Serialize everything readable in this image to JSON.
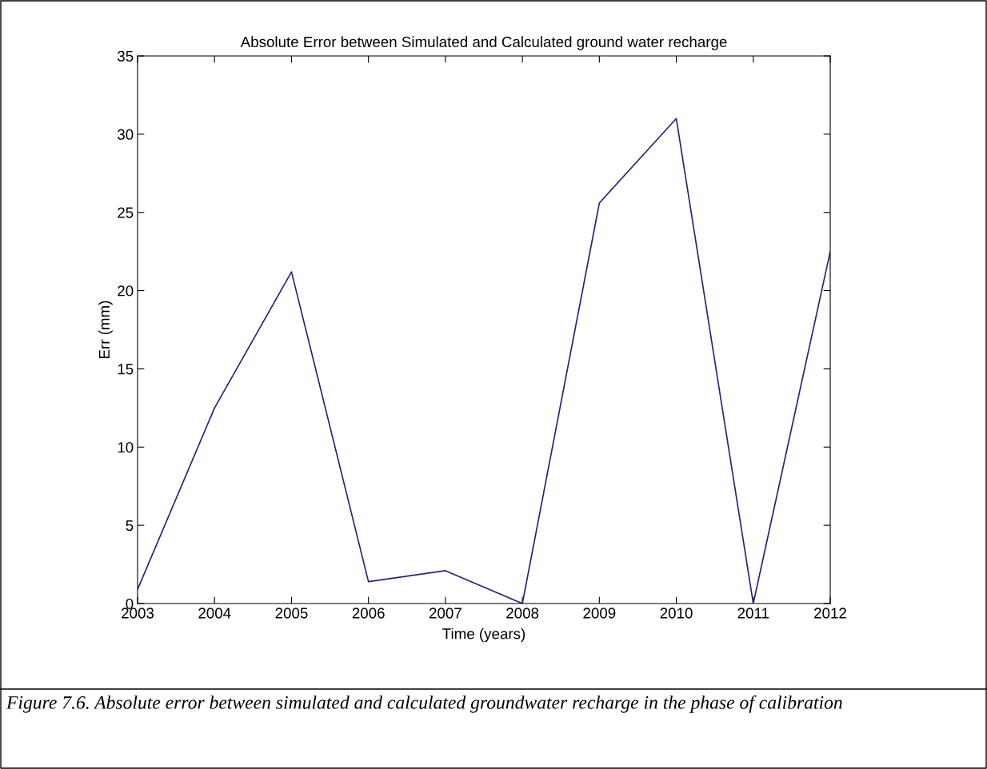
{
  "chart_data": {
    "type": "line",
    "title": "Absolute Error between Simulated and Calculated ground water recharge",
    "xlabel": "Time (years)",
    "ylabel": "Err (mm)",
    "x": [
      2003,
      2004,
      2005,
      2006,
      2007,
      2008,
      2009,
      2010,
      2011,
      2012
    ],
    "series": [
      {
        "color": "#24247f",
        "values": [
          0.9,
          12.5,
          21.2,
          1.4,
          2.1,
          0,
          25.6,
          31.0,
          0,
          22.5
        ]
      }
    ],
    "xlim": [
      2003,
      2012
    ],
    "xticks": [
      2003,
      2004,
      2005,
      2006,
      2007,
      2008,
      2009,
      2010,
      2011,
      2012
    ],
    "ylim": [
      0,
      35
    ],
    "yticks": [
      0,
      5,
      10,
      15,
      20,
      25,
      30,
      35
    ],
    "grid": false,
    "marker": "none",
    "line_style": "solid",
    "annotations": [
      "Figure 7.6. Absolute error between simulated and calculated groundwater recharge in the phase of calibration"
    ]
  }
}
